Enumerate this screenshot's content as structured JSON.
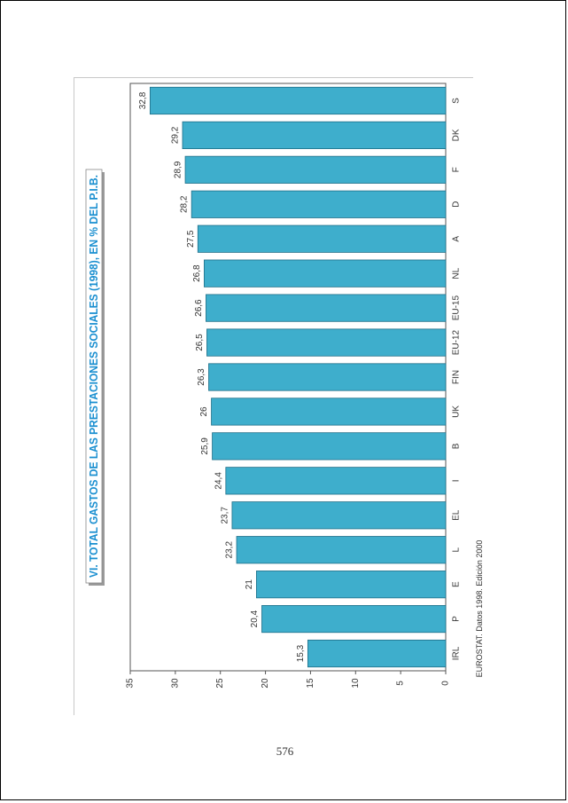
{
  "page": {
    "number": "576"
  },
  "chart_data": {
    "type": "bar",
    "orientation": "horizontal",
    "title": "VI. TOTAL GASTOS DE LAS PRESTACIONES SOCIALES (1998), EN % DEL P.I.B.",
    "source": "EUROSTAT. Datos 1998. Edición 2000",
    "categories": [
      "S",
      "DK",
      "F",
      "D",
      "A",
      "NL",
      "EU-15",
      "EU-12",
      "FIN",
      "UK",
      "B",
      "I",
      "EL",
      "L",
      "E",
      "P",
      "IRL"
    ],
    "values": [
      32.8,
      29.2,
      28.9,
      28.2,
      27.5,
      26.8,
      26.6,
      26.5,
      26.3,
      26,
      25.9,
      24.4,
      23.7,
      23.2,
      21,
      20.4,
      15.3
    ],
    "value_labels": [
      "32,8",
      "29,2",
      "28,9",
      "28,2",
      "27,5",
      "26,8",
      "26,6",
      "26,5",
      "26,3",
      "26",
      "25,9",
      "24,4",
      "23,7",
      "23,2",
      "21",
      "20,4",
      "15,3"
    ],
    "value_axis": {
      "min": 0,
      "max": 35,
      "ticks": [
        "35",
        "30",
        "25",
        "20",
        "15",
        "10",
        "5",
        "0"
      ]
    },
    "bar_color": "#3eaecc",
    "title_color": "#1a8fd0",
    "grid": false
  }
}
